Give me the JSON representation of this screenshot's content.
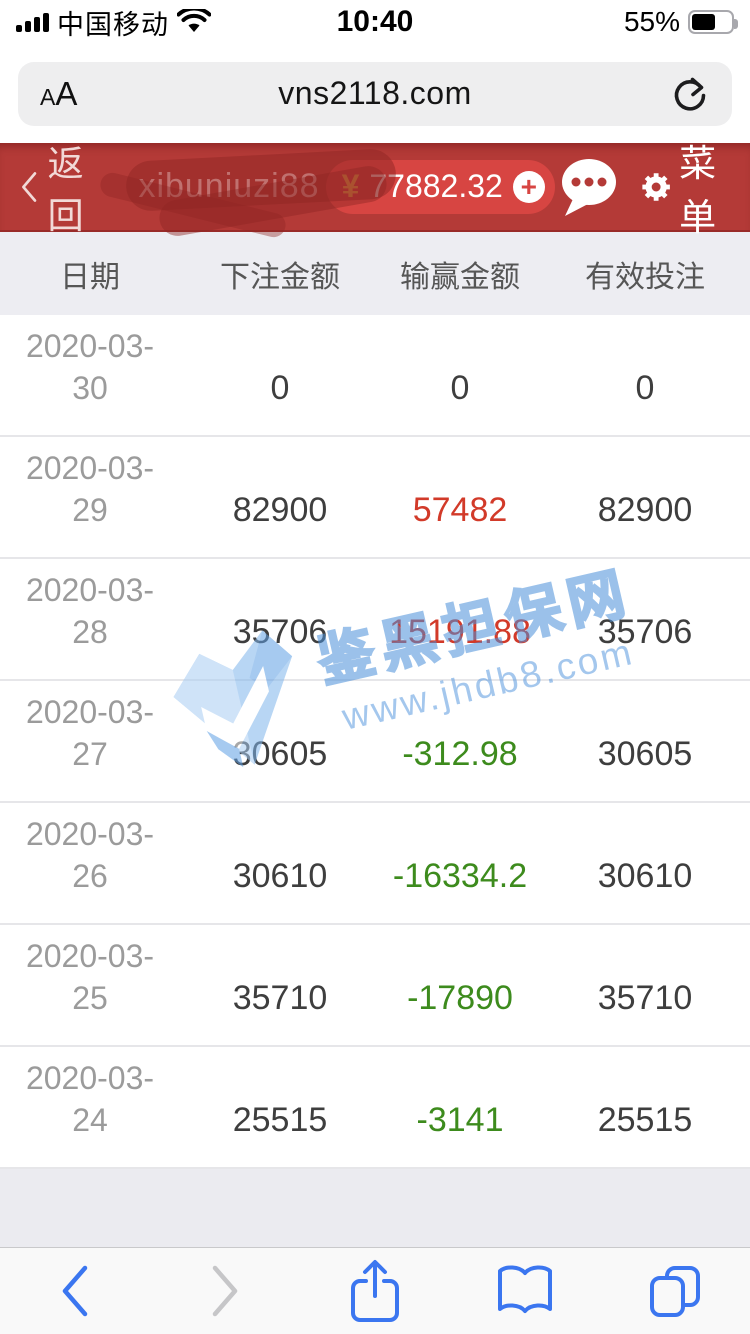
{
  "status_bar": {
    "carrier": "中国移动",
    "time": "10:40",
    "battery": "55%"
  },
  "address_bar": {
    "reader_button": {
      "small": "A",
      "large": "A"
    },
    "url": "vns2118.com"
  },
  "app_header": {
    "back_label": "返回",
    "username": "xibuniuzi88",
    "currency_symbol": "¥",
    "balance": "77882.32",
    "add_label": "+",
    "menu_label": "菜单"
  },
  "table": {
    "columns": [
      "日期",
      "下注金额",
      "输赢金额",
      "有效投注"
    ],
    "rows": [
      {
        "date": "2020-03-30",
        "bet": "0",
        "winloss": "0",
        "valid": "0"
      },
      {
        "date": "2020-03-29",
        "bet": "82900",
        "winloss": "57482",
        "valid": "82900"
      },
      {
        "date": "2020-03-28",
        "bet": "35706",
        "winloss": "15191.88",
        "valid": "35706"
      },
      {
        "date": "2020-03-27",
        "bet": "30605",
        "winloss": "-312.98",
        "valid": "30605"
      },
      {
        "date": "2020-03-26",
        "bet": "30610",
        "winloss": "-16334.2",
        "valid": "30610"
      },
      {
        "date": "2020-03-25",
        "bet": "35710",
        "winloss": "-17890",
        "valid": "35710"
      },
      {
        "date": "2020-03-24",
        "bet": "25515",
        "winloss": "-3141",
        "valid": "25515"
      }
    ]
  },
  "watermark": {
    "name": "鉴黑担保网",
    "url": "www.jhdb8.com"
  },
  "colors": {
    "header_red": "#b43a37",
    "badge_red": "#d74542",
    "win_red": "#d23a29",
    "loss_green": "#3d8b1d",
    "watermark_blue": "#4a90d9",
    "toolbar_blue": "#3b76f0",
    "gold": "#f5c64f"
  },
  "icons": {
    "signal": "signal-4-bars",
    "wifi": "wifi-full",
    "battery": "battery-55-percent",
    "reader": "text-size-AA",
    "reload": "circular-arrow",
    "back": "chevron-left",
    "chat": "speech-bubble-3-dots",
    "menu": "gear",
    "add_funds": "plus-in-circle",
    "watermark_logo": "blue-ribbon-checkmark",
    "nav_back": "chevron-left",
    "nav_forward": "chevron-right",
    "share": "square-with-up-arrow",
    "bookmarks": "open-book",
    "tabs": "two-overlapping-squares"
  }
}
